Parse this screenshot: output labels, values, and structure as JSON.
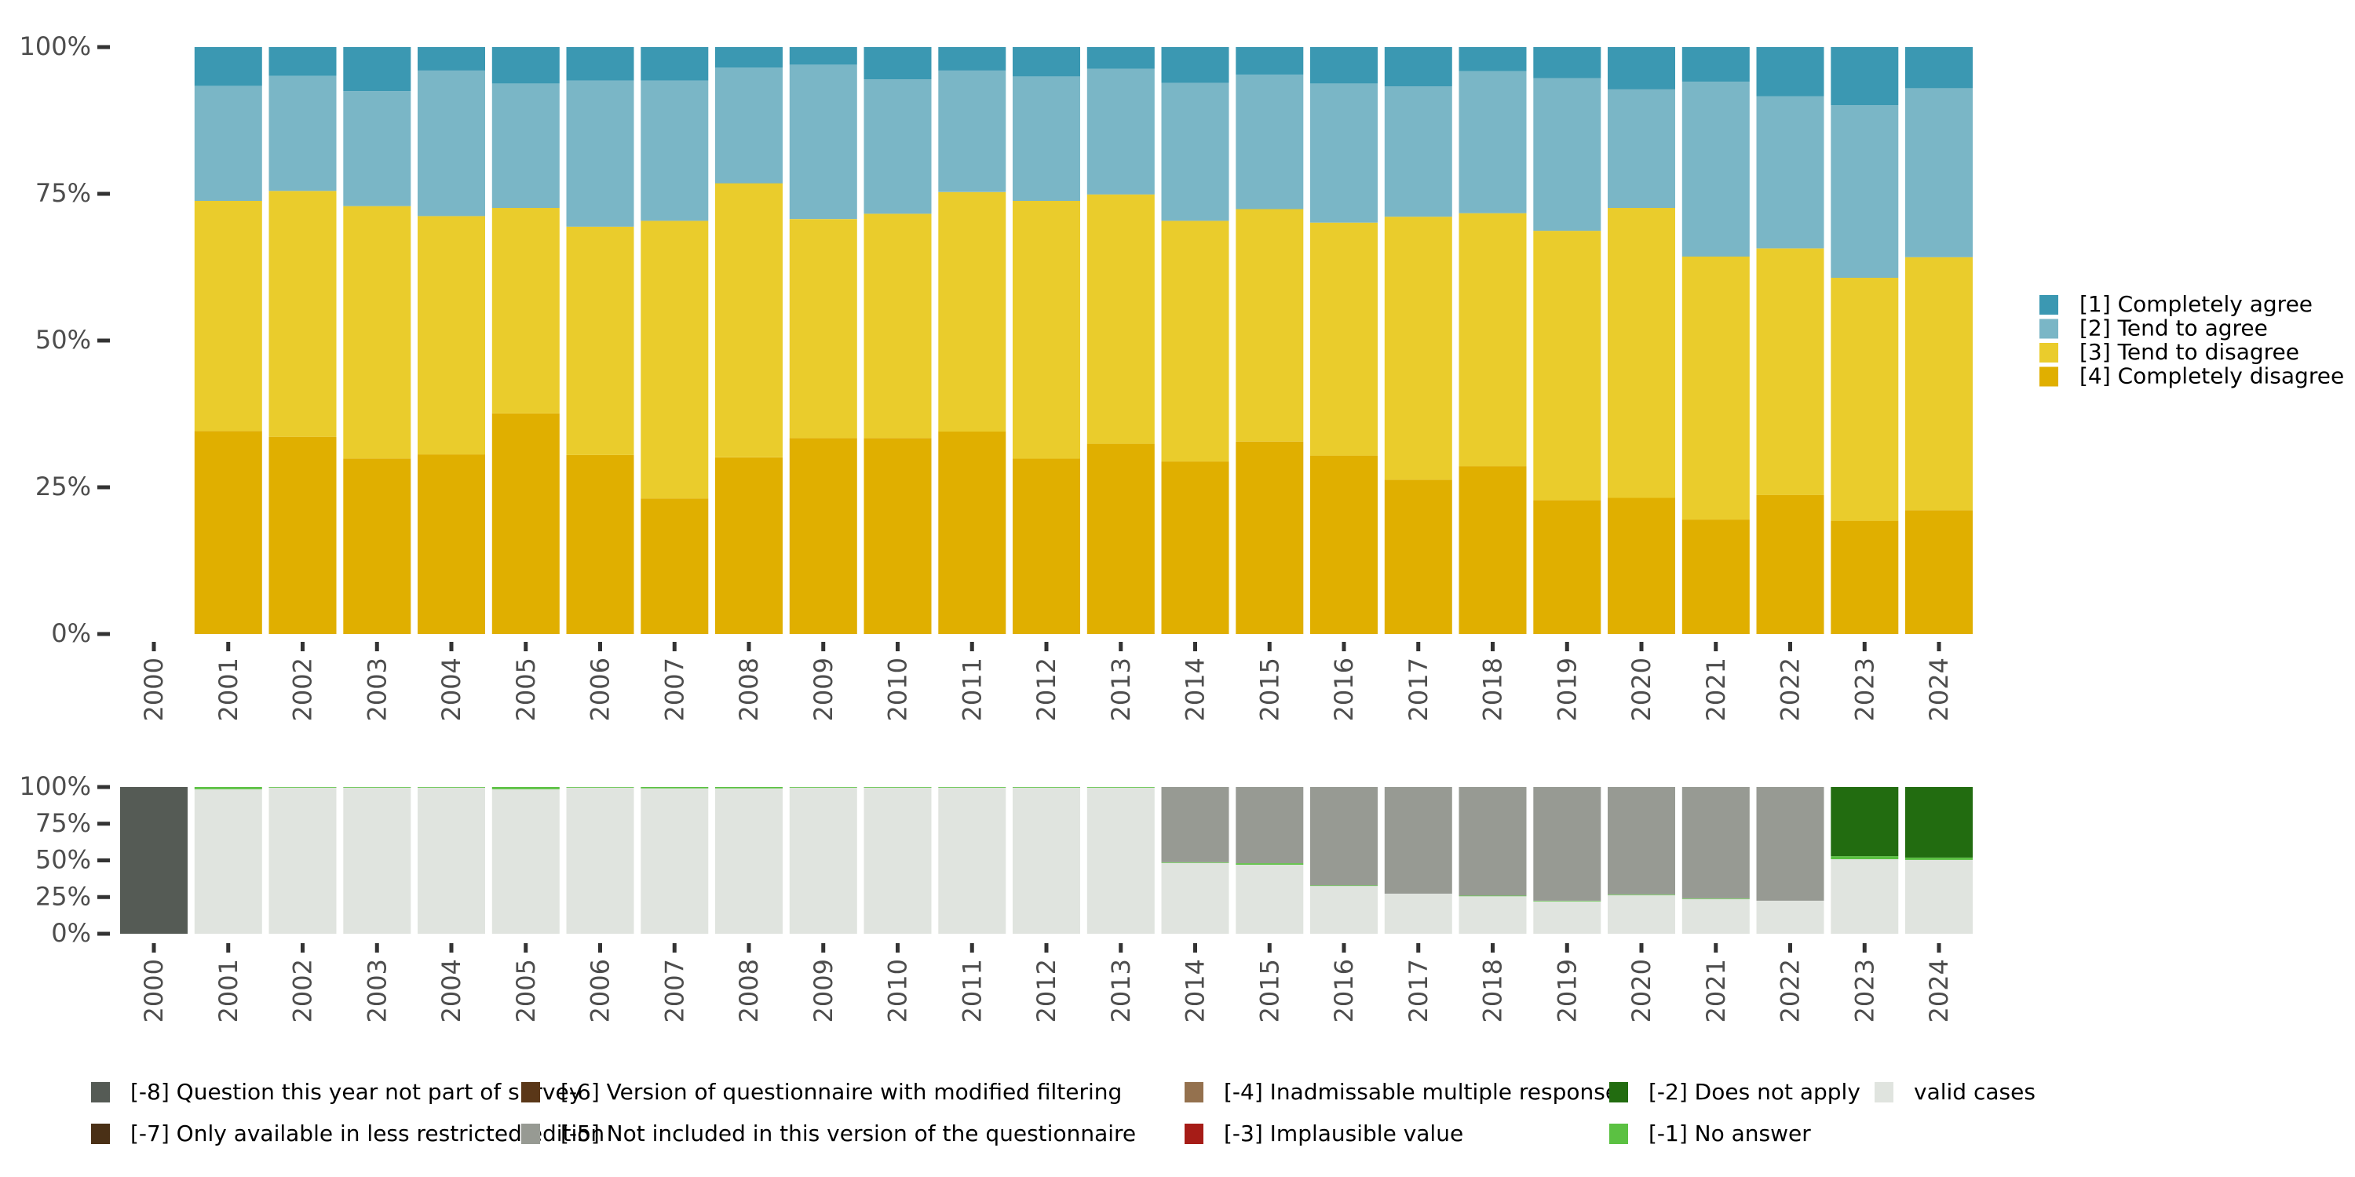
{
  "chart_data": [
    {
      "type": "bar",
      "stacked": true,
      "normalized": true,
      "title": "",
      "xlabel": "",
      "ylabel": "",
      "ylim": [
        0,
        100
      ],
      "y_ticks": [
        "0%",
        "25%",
        "50%",
        "75%",
        "100%"
      ],
      "grid": false,
      "legend_position": "right",
      "categories": [
        "2000",
        "2001",
        "2002",
        "2003",
        "2004",
        "2005",
        "2006",
        "2007",
        "2008",
        "2009",
        "2010",
        "2011",
        "2012",
        "2013",
        "2014",
        "2015",
        "2016",
        "2017",
        "2018",
        "2019",
        "2020",
        "2021",
        "2022",
        "2023",
        "2024"
      ],
      "series": [
        {
          "name": "[4] Completely disagree",
          "color": "#E0AF00",
          "values": [
            null,
            34.6,
            33.6,
            29.9,
            30.6,
            37.6,
            30.5,
            23.1,
            30.1,
            33.4,
            33.4,
            34.5,
            29.9,
            32.4,
            29.4,
            32.8,
            30.4,
            26.3,
            28.6,
            22.8,
            23.2,
            19.5,
            23.7,
            19.3,
            21.1
          ]
        },
        {
          "name": "[3] Tend to disagree",
          "color": "#EACC2C",
          "values": [
            null,
            39.2,
            41.9,
            43.0,
            40.6,
            35.0,
            38.9,
            47.3,
            46.7,
            37.3,
            38.2,
            40.8,
            43.9,
            42.5,
            41.0,
            39.6,
            39.7,
            44.8,
            43.1,
            45.9,
            49.4,
            44.8,
            42.0,
            41.4,
            43.1
          ]
        },
        {
          "name": "[2] Tend to agree",
          "color": "#7AB6C6",
          "values": [
            null,
            19.6,
            19.6,
            19.6,
            24.8,
            21.2,
            24.9,
            23.9,
            19.7,
            26.3,
            22.9,
            20.7,
            21.2,
            21.4,
            23.5,
            22.9,
            23.7,
            22.2,
            24.2,
            26.0,
            20.2,
            29.8,
            25.9,
            29.4,
            28.8
          ]
        },
        {
          "name": "[1] Completely agree",
          "color": "#3B98B2",
          "values": [
            null,
            6.6,
            4.9,
            7.5,
            4.0,
            6.2,
            5.7,
            5.7,
            3.5,
            3.0,
            5.5,
            4.0,
            5.0,
            3.7,
            6.1,
            4.7,
            6.2,
            6.7,
            4.1,
            5.3,
            7.2,
            5.9,
            8.4,
            9.9,
            7.0
          ]
        }
      ]
    },
    {
      "type": "bar",
      "stacked": true,
      "normalized": true,
      "title": "",
      "xlabel": "",
      "ylabel": "",
      "ylim": [
        0,
        100
      ],
      "y_ticks": [
        "0%",
        "25%",
        "50%",
        "75%",
        "100%"
      ],
      "grid": false,
      "legend_position": "bottom",
      "categories": [
        "2000",
        "2001",
        "2002",
        "2003",
        "2004",
        "2005",
        "2006",
        "2007",
        "2008",
        "2009",
        "2010",
        "2011",
        "2012",
        "2013",
        "2014",
        "2015",
        "2016",
        "2017",
        "2018",
        "2019",
        "2020",
        "2021",
        "2022",
        "2023",
        "2024"
      ],
      "series": [
        {
          "name": "valid cases",
          "color": "#E0E4DF",
          "values": [
            0,
            98.5,
            99.6,
            99.6,
            99.6,
            98.5,
            99.6,
            99.1,
            99.1,
            99.6,
            99.6,
            99.6,
            99.6,
            99.6,
            48.3,
            47.1,
            32.6,
            27.3,
            25.7,
            22.1,
            26.4,
            23.7,
            22.5,
            50.8,
            50.3
          ]
        },
        {
          "name": "[-1] No answer",
          "color": "#5BC142",
          "values": [
            0,
            1.5,
            0.4,
            0.4,
            0.4,
            1.5,
            0.4,
            0.9,
            0.9,
            0.4,
            0.4,
            0.4,
            0.4,
            0.4,
            0.4,
            1.0,
            0.4,
            0,
            0.3,
            0.4,
            0.4,
            0.4,
            0,
            2.1,
            1.6
          ]
        },
        {
          "name": "[-2] Does not apply",
          "color": "#226C10",
          "values": [
            0,
            0,
            0,
            0,
            0,
            0,
            0,
            0,
            0,
            0,
            0,
            0,
            0,
            0,
            0,
            0,
            0,
            0,
            0,
            0,
            0,
            0,
            0,
            47.1,
            48.1
          ]
        },
        {
          "name": "[-3] Implausible value",
          "color": "#A61C17",
          "values": [
            0,
            0,
            0,
            0,
            0,
            0,
            0,
            0,
            0,
            0,
            0,
            0,
            0,
            0,
            0,
            0,
            0,
            0,
            0,
            0,
            0,
            0,
            0,
            0,
            0
          ]
        },
        {
          "name": "[-4] Inadmissable multiple response",
          "color": "#94714E",
          "values": [
            0,
            0,
            0,
            0,
            0,
            0,
            0,
            0,
            0,
            0,
            0,
            0,
            0,
            0,
            0,
            0,
            0,
            0,
            0,
            0,
            0,
            0,
            0,
            0,
            0
          ]
        },
        {
          "name": "[-5] Not included in this version of the questionnaire",
          "color": "#979A93",
          "values": [
            0,
            0,
            0,
            0,
            0,
            0,
            0,
            0,
            0,
            0,
            0,
            0,
            0,
            0,
            51.3,
            51.9,
            67.0,
            72.7,
            74.0,
            77.5,
            73.2,
            75.9,
            77.5,
            0,
            0
          ]
        },
        {
          "name": "[-6] Version of questionnaire with modified filtering",
          "color": "#5A3718",
          "values": [
            0,
            0,
            0,
            0,
            0,
            0,
            0,
            0,
            0,
            0,
            0,
            0,
            0,
            0,
            0,
            0,
            0,
            0,
            0,
            0,
            0,
            0,
            0,
            0,
            0
          ]
        },
        {
          "name": "[-7] Only available in less restricted edition",
          "color": "#4A3016",
          "values": [
            0,
            0,
            0,
            0,
            0,
            0,
            0,
            0,
            0,
            0,
            0,
            0,
            0,
            0,
            0,
            0,
            0,
            0,
            0,
            0,
            0,
            0,
            0,
            0,
            0
          ]
        },
        {
          "name": "[-8] Question this year not part of survey",
          "color": "#555B55",
          "values": [
            100,
            0,
            0,
            0,
            0,
            0,
            0,
            0,
            0,
            0,
            0,
            0,
            0,
            0,
            0,
            0,
            0,
            0,
            0,
            0,
            0,
            0,
            0,
            0,
            0
          ]
        }
      ]
    }
  ],
  "legends": {
    "top": [
      {
        "label": "[1] Completely agree",
        "color": "#3B98B2"
      },
      {
        "label": "[2] Tend to agree",
        "color": "#7AB6C6"
      },
      {
        "label": "[3] Tend to disagree",
        "color": "#EACC2C"
      },
      {
        "label": "[4] Completely disagree",
        "color": "#E0AF00"
      }
    ],
    "bottom": [
      {
        "label": "[-8] Question this year not part of survey",
        "color": "#555B55"
      },
      {
        "label": "[-7] Only available in less restricted edition",
        "color": "#4A3016"
      },
      {
        "label": "[-6] Version of questionnaire with modified filtering",
        "color": "#5A3718"
      },
      {
        "label": "[-5] Not included in this version of the questionnaire",
        "color": "#979A93"
      },
      {
        "label": "[-4] Inadmissable multiple response",
        "color": "#94714E"
      },
      {
        "label": "[-3] Implausible value",
        "color": "#A61C17"
      },
      {
        "label": "[-2] Does not apply",
        "color": "#226C10"
      },
      {
        "label": "[-1] No answer",
        "color": "#5BC142"
      },
      {
        "label": "valid cases",
        "color": "#E0E4DF"
      }
    ]
  }
}
